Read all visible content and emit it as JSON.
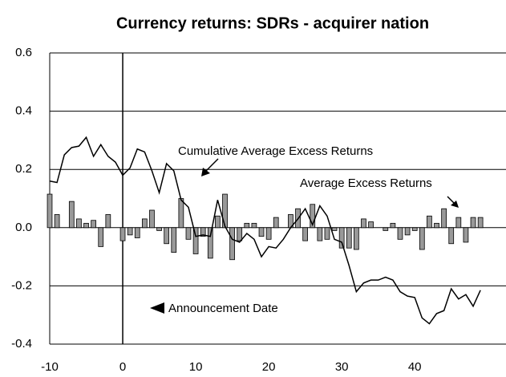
{
  "chart_data": {
    "type": "bar",
    "title": "Currency returns: SDRs - acquirer nation",
    "x": [
      -10,
      -9,
      -8,
      -7,
      -6,
      -5,
      -4,
      -3,
      -2,
      -1,
      0,
      1,
      2,
      3,
      4,
      5,
      6,
      7,
      8,
      9,
      10,
      11,
      12,
      13,
      14,
      15,
      16,
      17,
      18,
      19,
      20,
      21,
      22,
      23,
      24,
      25,
      26,
      27,
      28,
      29,
      30,
      31,
      32,
      33,
      34,
      35,
      36,
      37,
      38,
      39,
      40,
      41,
      42,
      43,
      44,
      45,
      46,
      47,
      48,
      49
    ],
    "series": [
      {
        "name": "Average Excess Returns",
        "type": "bar",
        "color": "#999999",
        "values": [
          0.115,
          0.045,
          0,
          0.09,
          0.03,
          0.015,
          0.025,
          -0.065,
          0.045,
          0,
          -0.045,
          -0.025,
          -0.035,
          0.03,
          0.06,
          -0.01,
          -0.055,
          -0.085,
          0.1,
          -0.04,
          -0.09,
          -0.03,
          -0.105,
          0.04,
          0.115,
          -0.11,
          -0.045,
          0.015,
          0.015,
          -0.03,
          -0.04,
          0.035,
          0,
          0.045,
          0.065,
          -0.045,
          0.08,
          -0.045,
          -0.04,
          -0.01,
          -0.07,
          -0.07,
          -0.075,
          0.03,
          0.02,
          0,
          -0.01,
          0.015,
          -0.04,
          -0.025,
          -0.01,
          -0.075,
          0.04,
          0.015,
          0.065,
          -0.055,
          0.035,
          -0.05,
          0.035,
          0.035
        ]
      },
      {
        "name": "Cumulative Average Excess Returns",
        "type": "line",
        "color": "#000000",
        "values": [
          0.16,
          0.155,
          0.25,
          0.275,
          0.28,
          0.31,
          0.245,
          0.285,
          0.245,
          0.225,
          0.18,
          0.205,
          0.27,
          0.26,
          0.195,
          0.12,
          0.22,
          0.195,
          0.095,
          0.07,
          -0.03,
          -0.025,
          -0.03,
          0.095,
          0.005,
          -0.04,
          -0.05,
          -0.02,
          -0.04,
          -0.1,
          -0.065,
          -0.07,
          -0.04,
          0.0,
          0.03,
          0.065,
          0.01,
          0.075,
          0.04,
          -0.04,
          -0.05,
          -0.13,
          -0.22,
          -0.19,
          -0.18,
          -0.18,
          -0.17,
          -0.18,
          -0.22,
          -0.235,
          -0.24,
          -0.31,
          -0.33,
          -0.295,
          -0.285,
          -0.21,
          -0.245,
          -0.23,
          -0.27,
          -0.215
        ]
      }
    ],
    "annotation": "Announcement Date",
    "xlim": [
      -10,
      52.5
    ],
    "xticks": [
      -10,
      0,
      10,
      20,
      30,
      40
    ],
    "ylim": [
      -0.4,
      0.6
    ],
    "yticks": [
      -0.4,
      -0.2,
      {
        "value": 0,
        "label": "0.0"
      },
      0.2,
      0.4,
      0.6
    ],
    "grid": true
  }
}
